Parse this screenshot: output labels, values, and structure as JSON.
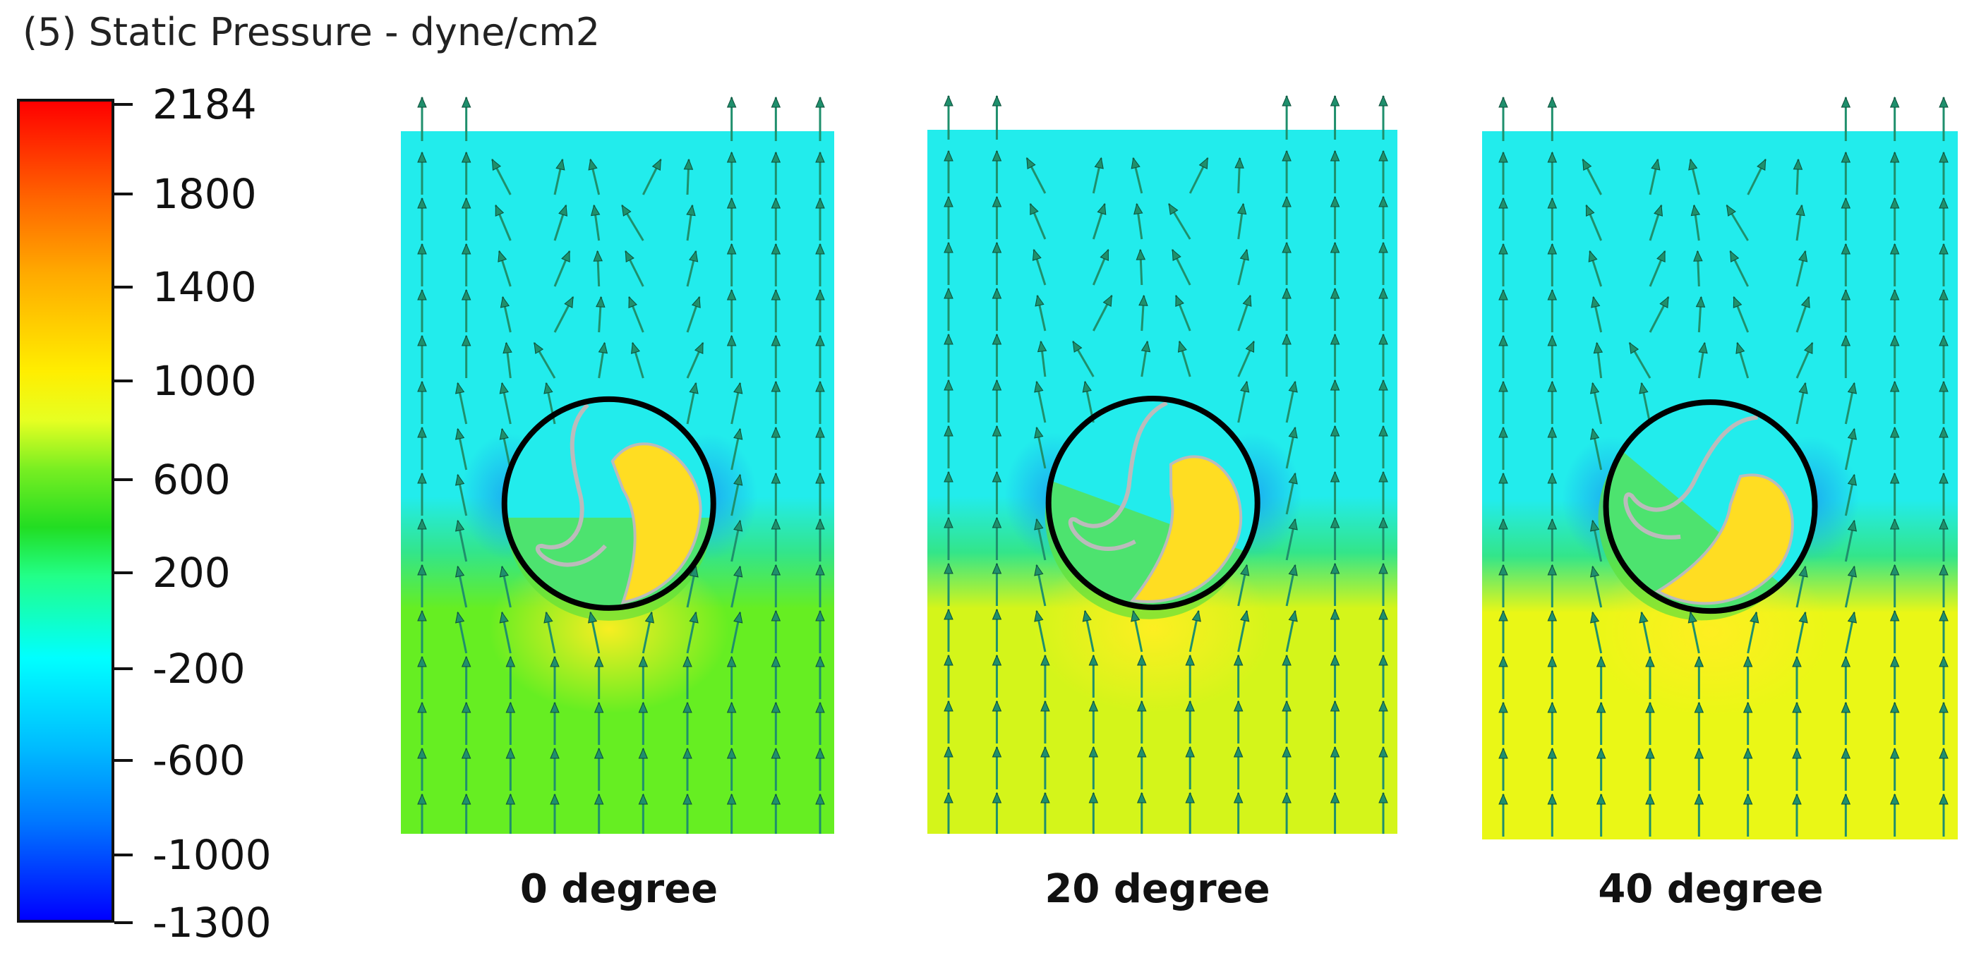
{
  "title": "(5) Static Pressure - dyne/cm2",
  "colorbar": {
    "tick_labels": [
      "2184",
      "1800",
      "1400",
      "1000",
      "600",
      "200",
      "-200",
      "-600",
      "-1000",
      "-1300"
    ],
    "tick_values": [
      2184,
      1800,
      1400,
      1000,
      600,
      200,
      -200,
      -600,
      -1000,
      -1300
    ],
    "range": [
      -1300,
      2184
    ],
    "colors": [
      "#ff0000",
      "#ff6600",
      "#ffaa00",
      "#ffee00",
      "#e6ff22",
      "#77ee22",
      "#22dd22",
      "#22ff88",
      "#00ffff",
      "#00bbff",
      "#0077ff",
      "#0000ff"
    ]
  },
  "panels": [
    {
      "label": "0 degree",
      "angle": 0,
      "lower_color": "#66ee22"
    },
    {
      "label": "20 degree",
      "angle": 20,
      "lower_color": "#d4f51a"
    },
    {
      "label": "40 degree",
      "angle": 40,
      "lower_color": "#eaf716"
    }
  ],
  "colors": {
    "low_pressure_region": "#22ecec",
    "blade_high_pressure": "#ffdd22",
    "arrow": "#1f8f6c",
    "rotor_outline": "#000000"
  }
}
